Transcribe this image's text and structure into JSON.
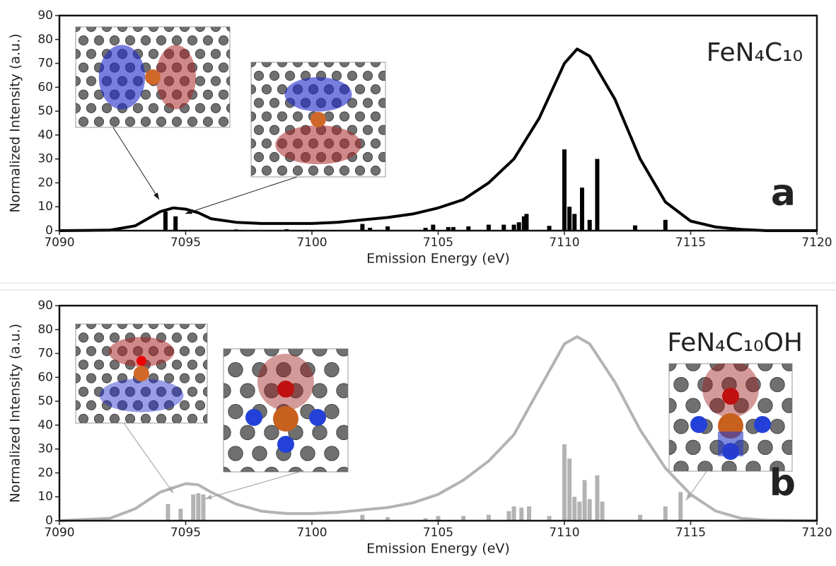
{
  "chart_data": [
    {
      "type": "line",
      "label": "FeN₄C₁₀",
      "panel": "a",
      "x_label": "Emission Energy (eV)",
      "y_label": "Normalized Intensity (a.u.)",
      "xlim": [
        7090,
        7120
      ],
      "xticks": [
        7090,
        7095,
        7100,
        7105,
        7110,
        7115,
        7120
      ],
      "ylim": [
        0,
        90
      ],
      "yticks": [
        0,
        10,
        20,
        30,
        40,
        50,
        60,
        70,
        80,
        90
      ],
      "curve": {
        "color": "#000000",
        "x": [
          7090,
          7092,
          7093,
          7093.5,
          7094,
          7094.5,
          7095,
          7095.5,
          7096,
          7097,
          7098,
          7099,
          7100,
          7101,
          7102,
          7103,
          7104,
          7105,
          7106,
          7107,
          7108,
          7109,
          7110,
          7110.5,
          7111,
          7112,
          7113,
          7114,
          7115,
          7116,
          7117,
          7118,
          7120
        ],
        "values": [
          0,
          0.2,
          2,
          5,
          8,
          9.5,
          9,
          7.5,
          5,
          3.5,
          3,
          3,
          3,
          3.5,
          4.5,
          5.5,
          7,
          9.5,
          13,
          20,
          30,
          47,
          70,
          76,
          73,
          55,
          30,
          12,
          4,
          1.5,
          0.5,
          0,
          0
        ]
      },
      "sticks": {
        "color": "#000000",
        "x": [
          7094.2,
          7094.6,
          7097,
          7099,
          7102,
          7102.3,
          7103,
          7104.5,
          7104.8,
          7105.4,
          7105.6,
          7106.2,
          7107,
          7107.6,
          7108,
          7108.2,
          7108.4,
          7108.5,
          7109.4,
          7110,
          7110.2,
          7110.4,
          7110.7,
          7111,
          7111.3,
          7112.8,
          7114
        ],
        "values": [
          8,
          6,
          0.5,
          0.6,
          2.8,
          1.2,
          1.8,
          1.2,
          2.5,
          1.5,
          1.5,
          1.8,
          2.5,
          2.5,
          2.5,
          3.5,
          6,
          7,
          2,
          34,
          10,
          7,
          18,
          4.5,
          30,
          2.2,
          4.5
        ]
      }
    },
    {
      "type": "line",
      "label": "FeN₄C₁₀OH",
      "panel": "b",
      "x_label": "Emission Energy (eV)",
      "y_label": "Normalized Intensity (a.u.)",
      "xlim": [
        7090,
        7120
      ],
      "xticks": [
        7090,
        7095,
        7100,
        7105,
        7110,
        7115,
        7120
      ],
      "ylim": [
        0,
        90
      ],
      "yticks": [
        0,
        10,
        20,
        30,
        40,
        50,
        60,
        70,
        80,
        90
      ],
      "curve": {
        "color": "#b3b3b3",
        "x": [
          7090,
          7092,
          7093,
          7094,
          7095,
          7095.5,
          7096,
          7097,
          7098,
          7099,
          7100,
          7101,
          7102,
          7103,
          7104,
          7105,
          7106,
          7107,
          7108,
          7109,
          7110,
          7110.5,
          7111,
          7112,
          7113,
          7114,
          7115,
          7116,
          7117,
          7118,
          7120
        ],
        "values": [
          0,
          1,
          5,
          12,
          15.5,
          15,
          12,
          7,
          4,
          3,
          3,
          3.5,
          4.5,
          5.5,
          7.5,
          11,
          17,
          25,
          36,
          55,
          74,
          77,
          74,
          58,
          38,
          22,
          11,
          4,
          1,
          0.2,
          0
        ]
      },
      "sticks": {
        "color": "#b3b3b3",
        "x": [
          7094.3,
          7094.8,
          7095.3,
          7095.5,
          7095.7,
          7102,
          7103,
          7104.5,
          7105,
          7106,
          7107,
          7107.8,
          7108,
          7108.3,
          7108.6,
          7109.4,
          7110,
          7110.2,
          7110.4,
          7110.6,
          7110.8,
          7111,
          7111.3,
          7111.5,
          7113,
          7114,
          7114.6
        ],
        "values": [
          7,
          5,
          11,
          11.5,
          11,
          2.5,
          1.5,
          1,
          2,
          2,
          2.5,
          4,
          6,
          5.5,
          6,
          2,
          32,
          26,
          10,
          8,
          17,
          9,
          19,
          8,
          2.5,
          6,
          12
        ]
      }
    }
  ]
}
